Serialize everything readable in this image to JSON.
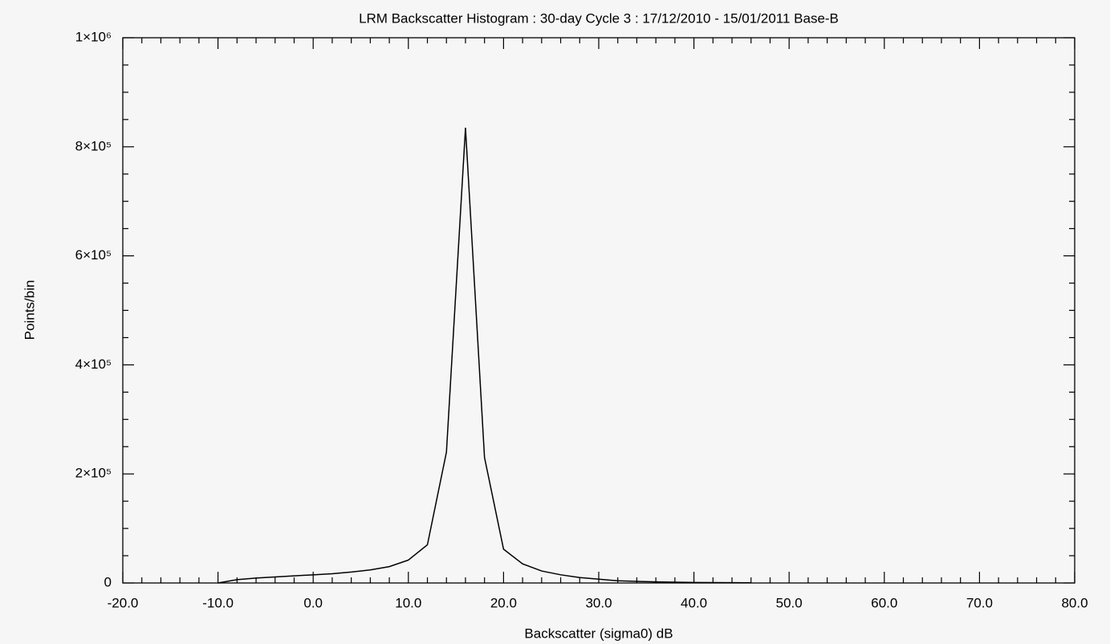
{
  "chart_data": {
    "type": "line",
    "title": "LRM Backscatter Histogram : 30-day Cycle 3 : 17/12/2010 - 15/01/2011 Base-B",
    "x_label": "Backscatter (sigma0) dB",
    "y_label": "Points/bin",
    "x": [
      -10,
      -8,
      -6,
      -4,
      -2,
      0,
      2,
      4,
      6,
      8,
      10,
      12,
      14,
      16,
      18,
      20,
      22,
      24,
      26,
      28,
      30,
      32,
      34,
      36,
      38,
      40,
      42,
      44,
      46
    ],
    "values": [
      0,
      6000,
      9000,
      11000,
      13000,
      15000,
      17000,
      20000,
      24000,
      30000,
      42000,
      70000,
      240000,
      835000,
      230000,
      62000,
      35000,
      22000,
      15000,
      10000,
      7000,
      4000,
      3000,
      2000,
      1500,
      1000,
      800,
      500,
      300
    ],
    "color": "#000000",
    "xlim": [
      -20,
      80
    ],
    "ylim": [
      0,
      1000000
    ],
    "xticks": [
      {
        "value": -20,
        "label": "-20.0"
      },
      {
        "value": -10,
        "label": "-10.0"
      },
      {
        "value": 0,
        "label": "0.0"
      },
      {
        "value": 10,
        "label": "10.0"
      },
      {
        "value": 20,
        "label": "20.0"
      },
      {
        "value": 30,
        "label": "30.0"
      },
      {
        "value": 40,
        "label": "40.0"
      },
      {
        "value": 50,
        "label": "50.0"
      },
      {
        "value": 60,
        "label": "60.0"
      },
      {
        "value": 70,
        "label": "70.0"
      },
      {
        "value": 80,
        "label": "80.0"
      }
    ],
    "yticks": [
      0,
      {
        "value": 200000,
        "label": "2×10⁵"
      },
      {
        "value": 400000,
        "label": "4×10⁵"
      },
      {
        "value": 600000,
        "label": "6×10⁵"
      },
      {
        "value": 800000,
        "label": "8×10⁵"
      },
      {
        "value": 1000000,
        "label": "1×10⁶"
      }
    ],
    "grid": false
  }
}
